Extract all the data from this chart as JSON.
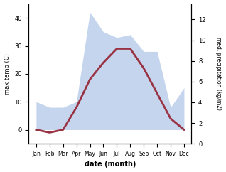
{
  "months": [
    "Jan",
    "Feb",
    "Mar",
    "Apr",
    "May",
    "Jun",
    "Jul",
    "Aug",
    "Sep",
    "Oct",
    "Nov",
    "Dec"
  ],
  "temp": [
    0,
    -1,
    0,
    8,
    18,
    24,
    29,
    29,
    22,
    13,
    4,
    0
  ],
  "precip_left_scale": [
    10,
    8,
    8,
    10,
    42,
    35,
    33,
    34,
    28,
    28,
    8,
    15
  ],
  "temp_color": "#993344",
  "precip_fill_color": "#c5d5ee",
  "temp_lw": 2.0,
  "ylabel_left": "max temp (C)",
  "ylabel_right": "med. precipitation (kg/m2)",
  "xlabel": "date (month)",
  "ylim_left": [
    -5,
    45
  ],
  "ylim_right": [
    0,
    13.5
  ],
  "yticks_left": [
    0,
    10,
    20,
    30,
    40
  ],
  "yticks_right": [
    0,
    2,
    4,
    6,
    8,
    10,
    12
  ],
  "bg_color": "#ffffff"
}
